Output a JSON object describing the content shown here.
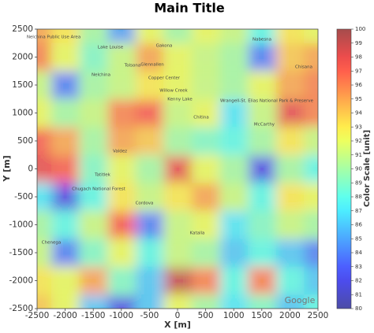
{
  "chart_data": {
    "type": "contour",
    "title": "Main Title",
    "xlabel": "X [m]",
    "ylabel": "Y [m]",
    "colorbar_label": "Color Scale [unit]",
    "colormap": "jet",
    "alpha": 0.55,
    "x": [
      -2500,
      -2000,
      -1500,
      -1000,
      -500,
      0,
      500,
      1000,
      1500,
      2000,
      2500
    ],
    "y": [
      2500,
      2000,
      1500,
      1000,
      500,
      0,
      -500,
      -1000,
      -1500,
      -2000,
      -2500
    ],
    "z": [
      [
        95,
        93,
        90,
        85,
        92,
        90,
        92,
        91,
        88,
        93,
        92
      ],
      [
        96,
        92,
        89,
        91,
        95,
        92,
        91,
        90,
        84,
        94,
        95
      ],
      [
        91,
        84,
        90,
        91,
        93,
        92,
        91,
        90,
        92,
        95,
        96
      ],
      [
        92,
        90,
        91,
        96,
        97,
        91,
        92,
        87,
        91,
        98,
        96
      ],
      [
        97,
        95,
        90,
        95,
        94,
        90,
        89,
        88,
        90,
        93,
        91
      ],
      [
        98,
        97,
        89,
        92,
        90,
        98,
        92,
        90,
        82,
        90,
        88
      ],
      [
        87,
        82,
        88,
        93,
        91,
        93,
        95,
        91,
        88,
        93,
        92
      ],
      [
        90,
        88,
        91,
        97,
        84,
        91,
        92,
        87,
        89,
        91,
        90
      ],
      [
        91,
        84,
        89,
        92,
        88,
        91,
        90,
        86,
        88,
        86,
        84
      ],
      [
        93,
        92,
        95,
        89,
        86,
        99,
        96,
        88,
        96,
        88,
        86
      ],
      [
        94,
        92,
        86,
        82,
        86,
        92,
        90,
        87,
        89,
        86,
        88
      ]
    ],
    "xlim": [
      -2500,
      2500
    ],
    "ylim": [
      -2500,
      2500
    ],
    "xticks": [
      -2500,
      -2000,
      -1500,
      -1000,
      -500,
      0,
      500,
      1000,
      1500,
      2000,
      2500
    ],
    "yticks": [
      -2500,
      -2000,
      -1500,
      -1000,
      -500,
      0,
      500,
      1000,
      1500,
      2000,
      2500
    ],
    "clim": [
      80,
      100
    ],
    "cticks": [
      80,
      81,
      82,
      83,
      84,
      85,
      86,
      87,
      88,
      89,
      90,
      91,
      92,
      93,
      94,
      95,
      96,
      97,
      98,
      99,
      100
    ],
    "map_labels": [
      "Nelchina Public Use Area",
      "Lake Louise",
      "Gakona",
      "Nabesna",
      "Chisana",
      "Nelchina",
      "Tolsona",
      "Glennallen",
      "Copper Center",
      "Willow Creek",
      "Kenny Lake",
      "Chitina",
      "Wrangell-St. Elias National Park & Preserve",
      "McCarthy",
      "Valdez",
      "Tatitlek",
      "Chugach National Forest",
      "Cordova",
      "Chenega",
      "Katalla"
    ],
    "watermark": "Google"
  }
}
